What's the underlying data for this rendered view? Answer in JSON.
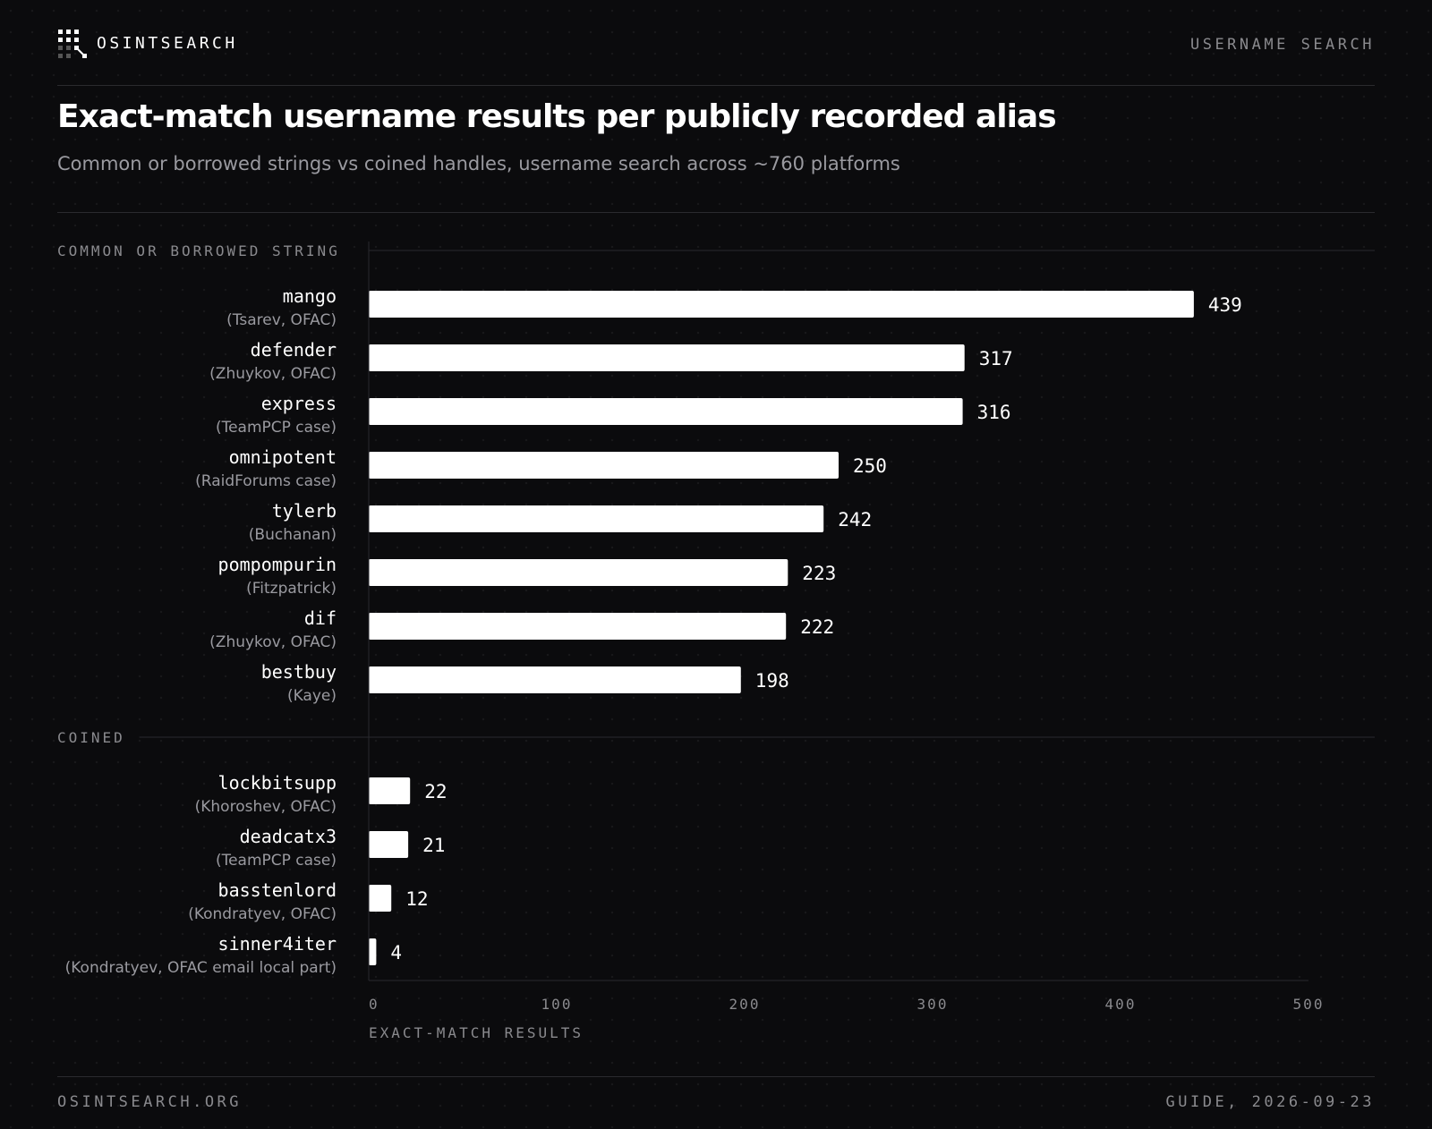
{
  "header": {
    "brand": "OSINTSEARCH",
    "section": "USERNAME SEARCH"
  },
  "title": "Exact-match username results per publicly recorded alias",
  "subtitle": "Common or borrowed strings vs coined handles, username search across ~760 platforms",
  "footer": {
    "site": "OSINTSEARCH.ORG",
    "guide": "GUIDE, 2026-09-23"
  },
  "colors": {
    "background": "#0b0b0d",
    "bar": "#ffffff",
    "muted_text": "#8a8a8e",
    "gridline": "#2a2a2e"
  },
  "icons": {
    "logo": "dot-grid-logo-icon"
  },
  "chart_data": {
    "type": "bar",
    "orientation": "horizontal",
    "xlabel": "EXACT-MATCH RESULTS",
    "xlim": [
      0,
      500
    ],
    "xticks": [
      0,
      100,
      200,
      300,
      400,
      500
    ],
    "groups": [
      {
        "name": "COMMON OR BORROWED STRING",
        "items": [
          {
            "label": "mango",
            "note": "(Tsarev, OFAC)",
            "value": 439
          },
          {
            "label": "defender",
            "note": "(Zhuykov, OFAC)",
            "value": 317
          },
          {
            "label": "express",
            "note": "(TeamPCP case)",
            "value": 316
          },
          {
            "label": "omnipotent",
            "note": "(RaidForums case)",
            "value": 250
          },
          {
            "label": "tylerb",
            "note": "(Buchanan)",
            "value": 242
          },
          {
            "label": "pompompurin",
            "note": "(Fitzpatrick)",
            "value": 223
          },
          {
            "label": "dif",
            "note": "(Zhuykov, OFAC)",
            "value": 222
          },
          {
            "label": "bestbuy",
            "note": "(Kaye)",
            "value": 198
          }
        ]
      },
      {
        "name": "COINED",
        "items": [
          {
            "label": "lockbitsupp",
            "note": "(Khoroshev, OFAC)",
            "value": 22
          },
          {
            "label": "deadcatx3",
            "note": "(TeamPCP case)",
            "value": 21
          },
          {
            "label": "basstenlord",
            "note": "(Kondratyev, OFAC)",
            "value": 12
          },
          {
            "label": "sinner4iter",
            "note": "(Kondratyev, OFAC email local part)",
            "value": 4
          }
        ]
      }
    ],
    "grid": false,
    "legend": "none"
  }
}
